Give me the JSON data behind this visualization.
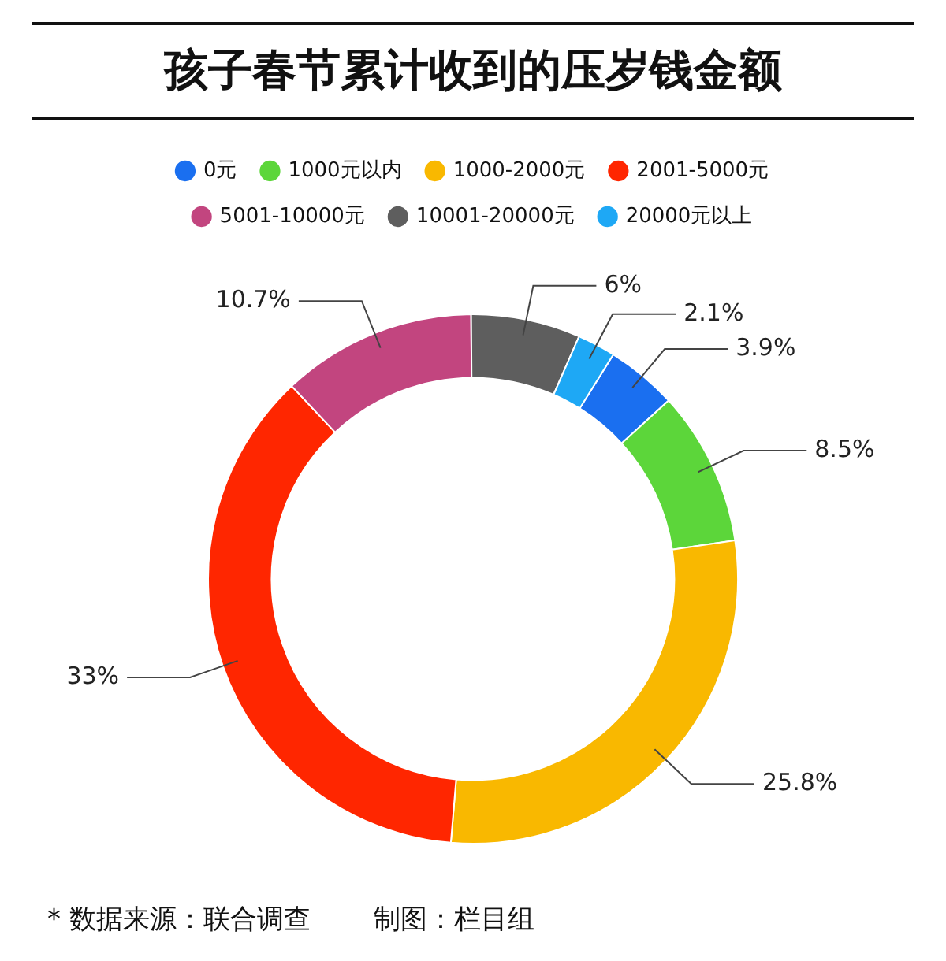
{
  "chart_data": {
    "type": "donut",
    "title": "孩子春节累计收到的压岁钱金额",
    "categories": [
      "0元",
      "1000元以内",
      "1000-2000元",
      "2001-5000元",
      "5001-10000元",
      "10001-20000元",
      "20000元以上"
    ],
    "values": [
      3.9,
      8.5,
      25.8,
      33,
      10.7,
      6,
      2.1
    ],
    "value_labels": [
      "3.9%",
      "8.5%",
      "25.8%",
      "33%",
      "10.7%",
      "6%",
      "2.1%"
    ],
    "colors": [
      "#1a6ff0",
      "#5cd63a",
      "#f9b800",
      "#ff2600",
      "#c2457f",
      "#5e5e5e",
      "#1ea8f5"
    ],
    "legend": "top",
    "annotations": [
      "* 数据来源：联合调查",
      "制图：栏目组"
    ]
  }
}
